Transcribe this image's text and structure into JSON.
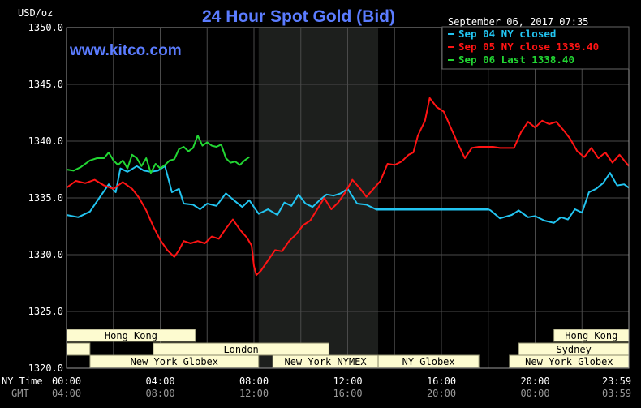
{
  "chart_data": {
    "type": "line",
    "title": "24 Hour Spot Gold (Bid)",
    "brand": "www.kitco.com",
    "timestamp": "September 06, 2017 07:35",
    "ylabel": "USD/oz",
    "ylim": [
      1320,
      1350
    ],
    "yticks": [
      1320,
      1325,
      1330,
      1335,
      1340,
      1345,
      1350
    ],
    "ytick_labels": [
      "1320.0",
      "1325.0",
      "1330.0",
      "1335.0",
      "1340.0",
      "1345.0",
      "1350.0"
    ],
    "xlim": [
      0,
      24
    ],
    "x_axis_labels": {
      "primary": "NY Time",
      "secondary": "GMT"
    },
    "xticks": [
      0,
      4,
      8,
      12,
      16,
      20,
      23.983
    ],
    "xtick_labels_ny": [
      "00:00",
      "04:00",
      "08:00",
      "12:00",
      "16:00",
      "20:00",
      "23:59"
    ],
    "xtick_labels_gmt": [
      "04:00",
      "08:00",
      "12:00",
      "16:00",
      "20:00",
      "00:00",
      "03:59"
    ],
    "grid": true,
    "shaded_hours": [
      8.2,
      13.3
    ],
    "legend_placement": "top-right",
    "sessions": [
      {
        "label": "Hong Kong",
        "start": 0,
        "end": 5.5,
        "row": 0
      },
      {
        "label": "",
        "start": 0,
        "end": 1,
        "row": 1
      },
      {
        "label": "London",
        "start": 3.7,
        "end": 11.2,
        "row": 1
      },
      {
        "label": "New York Globex",
        "start": 1,
        "end": 8.2,
        "row": 2
      },
      {
        "label": "New York NYMEX",
        "start": 8.8,
        "end": 13.3,
        "row": 2
      },
      {
        "label": "NY Globex",
        "start": 13.3,
        "end": 17.6,
        "row": 2
      },
      {
        "label": "Hong Kong",
        "start": 20.8,
        "end": 24,
        "row": 0
      },
      {
        "label": "Sydney",
        "start": 19.3,
        "end": 24,
        "row": 1
      },
      {
        "label": "New York Globex",
        "start": 18.9,
        "end": 24,
        "row": 2
      }
    ],
    "series": [
      {
        "name": "Sep 04 NY closed",
        "color": "#22c4f0",
        "x": [
          0,
          0.5,
          1,
          1.4,
          1.8,
          2.1,
          2.3,
          2.6,
          3.0,
          3.3,
          3.6,
          3.9,
          4.2,
          4.5,
          4.8,
          5.0,
          5.4,
          5.7,
          6.0,
          6.4,
          6.8,
          7.2,
          7.5,
          7.8,
          8.2,
          8.6,
          9.0,
          9.3,
          9.6,
          9.9,
          10.2,
          10.5,
          10.8,
          11.1,
          11.4,
          11.7,
          12.0,
          12.4,
          12.8,
          13.2,
          14,
          15,
          16,
          17,
          18,
          18.1,
          18.5,
          19.0,
          19.3,
          19.7,
          20.0,
          20.4,
          20.8,
          21.1,
          21.4,
          21.7,
          22.0,
          22.3,
          22.6,
          22.9,
          23.2,
          23.5,
          23.8,
          24
        ],
        "values": [
          1333.5,
          1333.3,
          1333.8,
          1335.0,
          1336.2,
          1335.5,
          1337.6,
          1337.3,
          1337.8,
          1337.4,
          1337.3,
          1337.4,
          1337.8,
          1335.5,
          1335.8,
          1334.5,
          1334.4,
          1334.0,
          1334.5,
          1334.3,
          1335.4,
          1334.7,
          1334.2,
          1334.8,
          1333.6,
          1334.0,
          1333.5,
          1334.6,
          1334.3,
          1335.3,
          1334.5,
          1334.2,
          1334.8,
          1335.3,
          1335.2,
          1335.4,
          1335.8,
          1334.5,
          1334.4,
          1334.0,
          1334.0,
          1334.0,
          1334.0,
          1334.0,
          1334.0,
          1333.9,
          1333.2,
          1333.5,
          1333.9,
          1333.3,
          1333.4,
          1333.0,
          1332.8,
          1333.3,
          1333.1,
          1334.0,
          1333.7,
          1335.5,
          1335.8,
          1336.3,
          1337.2,
          1336.1,
          1336.2,
          1335.9
        ]
      },
      {
        "name": "Sep 05 NY close 1339.40",
        "color": "#ff1414",
        "x": [
          0,
          0.4,
          0.8,
          1.2,
          1.6,
          2.0,
          2.4,
          2.8,
          3.1,
          3.4,
          3.7,
          4.0,
          4.3,
          4.6,
          4.8,
          5.0,
          5.3,
          5.6,
          5.9,
          6.2,
          6.5,
          6.8,
          7.1,
          7.4,
          7.7,
          7.9,
          8.0,
          8.1,
          8.3,
          8.6,
          8.9,
          9.2,
          9.5,
          9.8,
          10.1,
          10.4,
          10.7,
          11.0,
          11.3,
          11.6,
          11.9,
          12.2,
          12.5,
          12.8,
          13.1,
          13.4,
          13.7,
          14.0,
          14.3,
          14.6,
          14.8,
          15.0,
          15.3,
          15.5,
          15.8,
          16.1,
          16.4,
          16.7,
          17.0,
          17.3,
          17.6,
          17.9,
          18.2,
          18.5,
          18.8,
          19.1,
          19.4,
          19.7,
          20.0,
          20.3,
          20.6,
          20.9,
          21.2,
          21.5,
          21.8,
          22.1,
          22.4,
          22.7,
          23.0,
          23.3,
          23.6,
          24
        ],
        "values": [
          1335.9,
          1336.5,
          1336.3,
          1336.6,
          1336.1,
          1335.8,
          1336.4,
          1335.8,
          1335.0,
          1333.9,
          1332.5,
          1331.3,
          1330.4,
          1329.8,
          1330.4,
          1331.2,
          1331.0,
          1331.2,
          1331.0,
          1331.6,
          1331.4,
          1332.3,
          1333.1,
          1332.2,
          1331.5,
          1330.8,
          1329.0,
          1328.2,
          1328.6,
          1329.5,
          1330.4,
          1330.3,
          1331.2,
          1331.8,
          1332.6,
          1333.0,
          1334.0,
          1335.0,
          1334.0,
          1334.6,
          1335.5,
          1336.6,
          1335.9,
          1335.1,
          1335.8,
          1336.5,
          1338.0,
          1337.9,
          1338.2,
          1338.8,
          1339.0,
          1340.5,
          1341.8,
          1343.8,
          1343.0,
          1342.6,
          1341.2,
          1339.8,
          1338.5,
          1339.4,
          1339.5,
          1339.5,
          1339.5,
          1339.4,
          1339.4,
          1339.4,
          1340.8,
          1341.7,
          1341.2,
          1341.8,
          1341.5,
          1341.7,
          1341.0,
          1340.2,
          1339.1,
          1338.6,
          1339.4,
          1338.5,
          1339.0,
          1338.1,
          1338.8,
          1337.8
        ]
      },
      {
        "name": "Sep 06 Last 1338.40",
        "color": "#22d633",
        "x": [
          0,
          0.3,
          0.6,
          1.0,
          1.3,
          1.6,
          1.8,
          2.0,
          2.2,
          2.4,
          2.6,
          2.8,
          3.0,
          3.2,
          3.4,
          3.6,
          3.8,
          4.0,
          4.2,
          4.4,
          4.6,
          4.8,
          5.0,
          5.2,
          5.4,
          5.6,
          5.8,
          6.0,
          6.2,
          6.4,
          6.6,
          6.8,
          7.0,
          7.2,
          7.4,
          7.6,
          7.8
        ],
        "values": [
          1337.5,
          1337.4,
          1337.7,
          1338.3,
          1338.5,
          1338.5,
          1339.0,
          1338.3,
          1337.9,
          1338.3,
          1337.6,
          1338.8,
          1338.5,
          1337.8,
          1338.5,
          1337.2,
          1338.0,
          1337.6,
          1337.9,
          1338.3,
          1338.4,
          1339.3,
          1339.5,
          1339.1,
          1339.4,
          1340.5,
          1339.6,
          1339.9,
          1339.6,
          1339.5,
          1339.7,
          1338.5,
          1338.1,
          1338.2,
          1337.9,
          1338.3,
          1338.6
        ]
      }
    ]
  }
}
